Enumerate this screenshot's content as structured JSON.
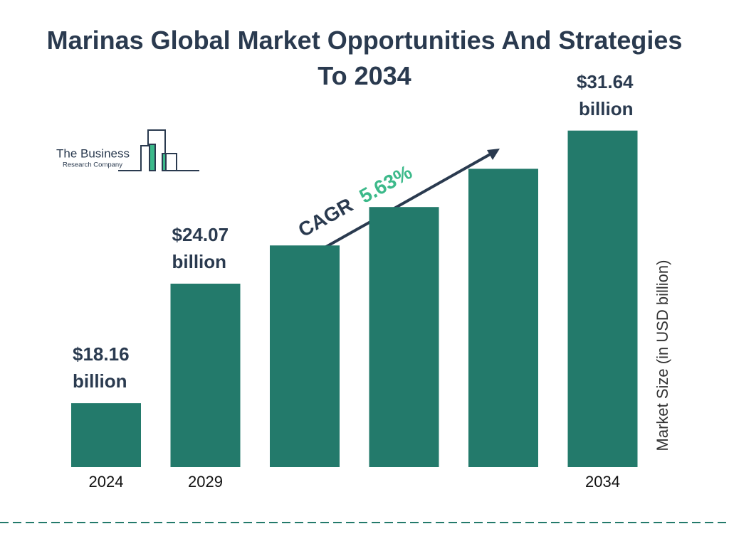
{
  "chart_data": {
    "type": "bar",
    "title": "Marinas Global Market Opportunities And Strategies To 2034",
    "categories": [
      "2024",
      "2029",
      null,
      null,
      null,
      "2034"
    ],
    "values": [
      18.16,
      24.07,
      25.96,
      27.86,
      29.75,
      31.64
    ],
    "value_labels": [
      "$18.16 billion",
      "$24.07 billion",
      null,
      null,
      null,
      "$31.64 billion"
    ],
    "color": "#237a6b",
    "ylim": [
      15,
      33
    ],
    "y_label": "Market Size (in USD billion)",
    "cagr_label": "CAGR",
    "cagr_value": "5.63%",
    "logo": {
      "line1": "The Business",
      "line2": "Research Company"
    }
  }
}
